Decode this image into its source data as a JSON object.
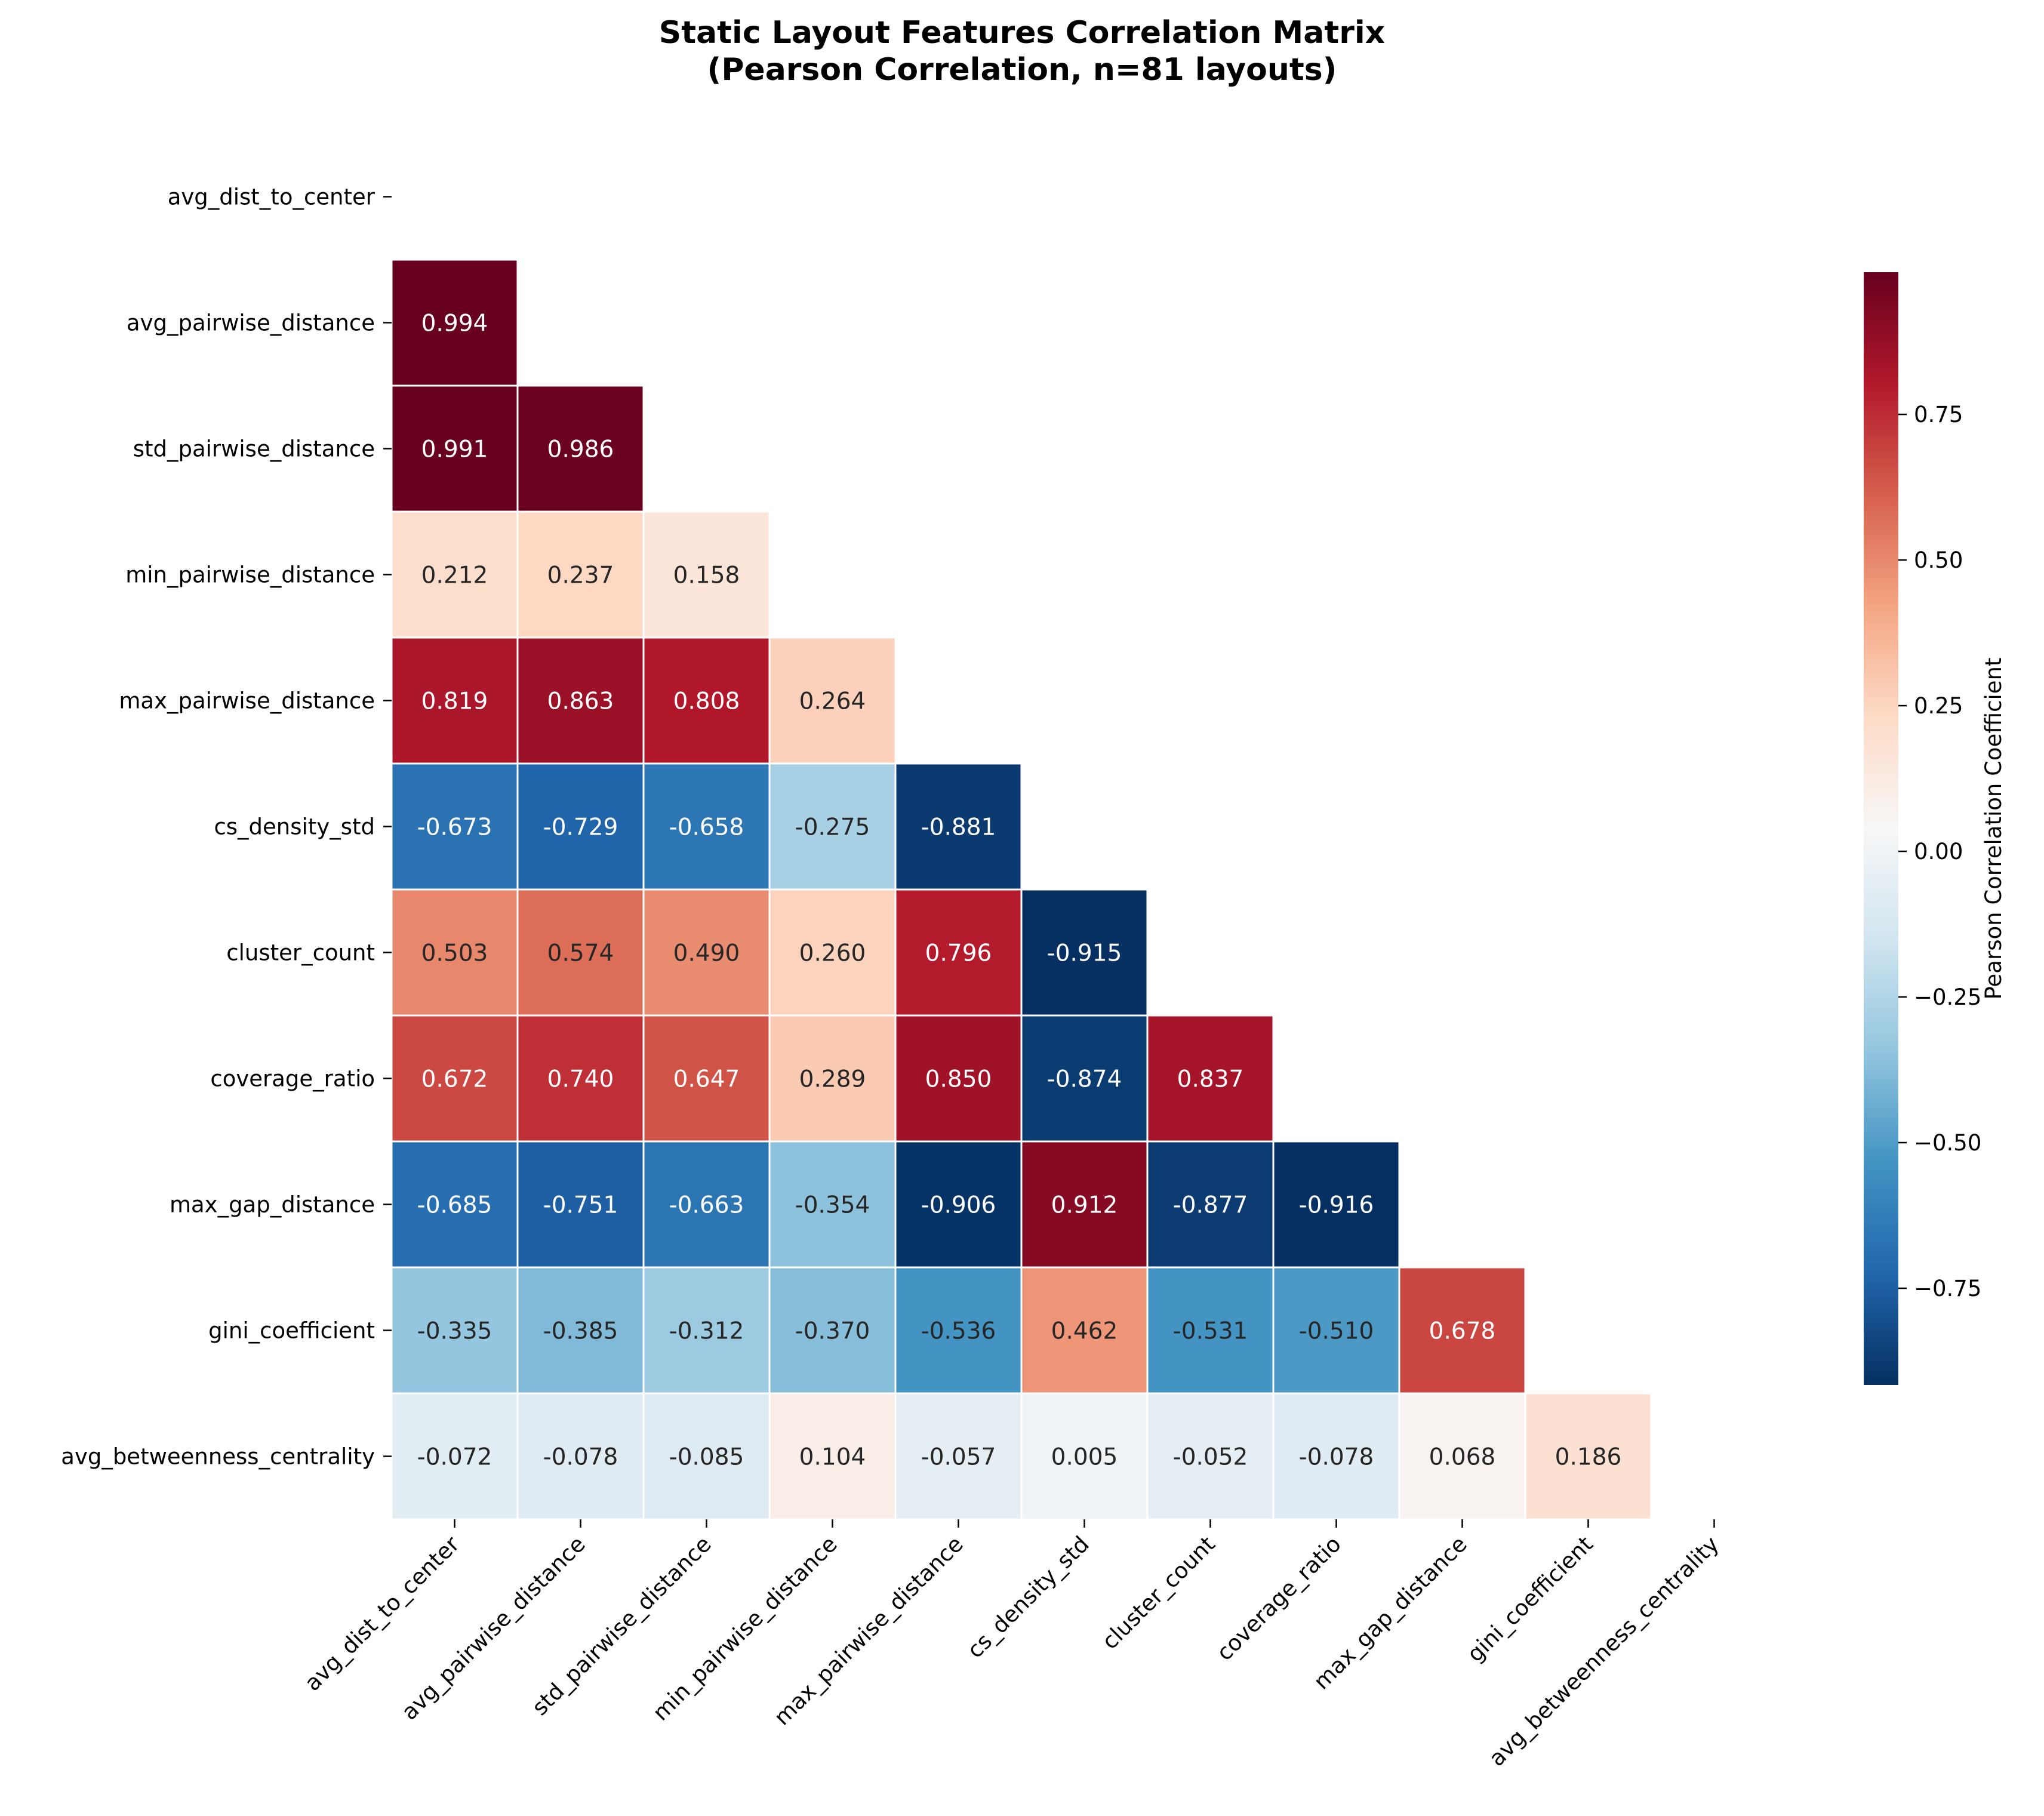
{
  "chart_data": {
    "type": "heatmap",
    "title": [
      "Static Layout Features Correlation Matrix",
      "(Pearson Correlation, n=81 layouts)"
    ],
    "features": [
      "avg_dist_to_center",
      "avg_pairwise_distance",
      "std_pairwise_distance",
      "min_pairwise_distance",
      "max_pairwise_distance",
      "cs_density_std",
      "cluster_count",
      "coverage_ratio",
      "max_gap_distance",
      "gini_coefficient",
      "avg_betweenness_centrality"
    ],
    "mask": "upper-triangle-including-diagonal",
    "matrix": [
      [],
      [
        0.994
      ],
      [
        0.991,
        0.986
      ],
      [
        0.212,
        0.237,
        0.158
      ],
      [
        0.819,
        0.863,
        0.808,
        0.264
      ],
      [
        -0.673,
        -0.729,
        -0.658,
        -0.275,
        -0.881
      ],
      [
        0.503,
        0.574,
        0.49,
        0.26,
        0.796,
        -0.915
      ],
      [
        0.672,
        0.74,
        0.647,
        0.289,
        0.85,
        -0.874,
        0.837
      ],
      [
        -0.685,
        -0.751,
        -0.663,
        -0.354,
        -0.906,
        0.912,
        -0.877,
        -0.916
      ],
      [
        -0.335,
        -0.385,
        -0.312,
        -0.37,
        -0.536,
        0.462,
        -0.531,
        -0.51,
        0.678
      ],
      [
        -0.072,
        -0.078,
        -0.085,
        0.104,
        -0.057,
        0.005,
        -0.052,
        -0.078,
        0.068,
        0.186
      ]
    ],
    "colormap": "RdBu_r",
    "vmin": -0.916,
    "vmax": 0.994,
    "colorbar": {
      "label": "Pearson Correlation Coefficient",
      "ticks": [
        -0.75,
        -0.5,
        -0.25,
        0.0,
        0.25,
        0.5,
        0.75
      ],
      "tick_labels": [
        "−0.75",
        "−0.50",
        "−0.25",
        "0.00",
        "0.25",
        "0.50",
        "0.75"
      ]
    },
    "value_format": "3 decimals"
  }
}
